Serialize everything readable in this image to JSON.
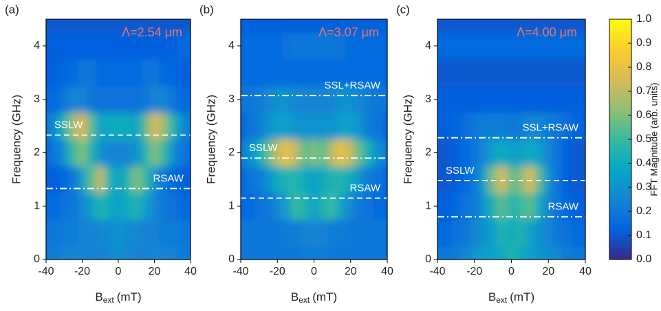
{
  "chart_data": [
    {
      "type": "heatmap",
      "panel": "(a)",
      "title": "Λ=2.54 μm",
      "title_color": "#f0756a",
      "xlabel": [
        "B",
        "ext",
        "(mT)"
      ],
      "ylabel": "Frequency (GHz)",
      "xlim": [
        -40,
        40
      ],
      "ylim": [
        0,
        4.5
      ],
      "xticks": [
        -40,
        -20,
        0,
        20,
        40
      ],
      "yticks": [
        0,
        1,
        2,
        3,
        4
      ],
      "x": [
        -40,
        -35,
        -30,
        -25,
        -20,
        -15,
        -10,
        -5,
        0,
        5,
        10,
        15,
        20,
        25,
        30,
        35,
        40
      ],
      "y": [
        0,
        0.5,
        1,
        1.5,
        2,
        2.5,
        3,
        3.5,
        4,
        4.5
      ],
      "z": [
        [
          0.22,
          0.22,
          0.24,
          0.25,
          0.25,
          0.24,
          0.24,
          0.25,
          0.3,
          0.25,
          0.24,
          0.24,
          0.25,
          0.25,
          0.24,
          0.22,
          0.22
        ],
        [
          0.2,
          0.2,
          0.22,
          0.22,
          0.24,
          0.24,
          0.26,
          0.28,
          0.3,
          0.28,
          0.26,
          0.24,
          0.24,
          0.22,
          0.22,
          0.2,
          0.2
        ],
        [
          0.15,
          0.15,
          0.18,
          0.2,
          0.25,
          0.35,
          0.45,
          0.4,
          0.35,
          0.4,
          0.45,
          0.35,
          0.25,
          0.2,
          0.18,
          0.15,
          0.15
        ],
        [
          0.12,
          0.12,
          0.15,
          0.2,
          0.35,
          0.55,
          0.7,
          0.45,
          0.35,
          0.45,
          0.6,
          0.5,
          0.3,
          0.2,
          0.15,
          0.12,
          0.12
        ],
        [
          0.15,
          0.2,
          0.3,
          0.5,
          0.6,
          0.45,
          0.3,
          0.25,
          0.25,
          0.25,
          0.3,
          0.45,
          0.6,
          0.5,
          0.3,
          0.2,
          0.15
        ],
        [
          0.2,
          0.3,
          0.45,
          0.65,
          0.75,
          0.55,
          0.35,
          0.4,
          0.4,
          0.4,
          0.35,
          0.55,
          0.75,
          0.65,
          0.45,
          0.3,
          0.2
        ],
        [
          0.15,
          0.15,
          0.2,
          0.25,
          0.25,
          0.2,
          0.18,
          0.18,
          0.18,
          0.18,
          0.18,
          0.2,
          0.25,
          0.25,
          0.2,
          0.15,
          0.15
        ],
        [
          0.12,
          0.12,
          0.14,
          0.15,
          0.2,
          0.2,
          0.15,
          0.15,
          0.15,
          0.15,
          0.15,
          0.18,
          0.2,
          0.15,
          0.14,
          0.12,
          0.12
        ],
        [
          0.12,
          0.12,
          0.12,
          0.12,
          0.12,
          0.12,
          0.12,
          0.12,
          0.12,
          0.12,
          0.12,
          0.12,
          0.12,
          0.12,
          0.12,
          0.15,
          0.15
        ],
        [
          0.1,
          0.1,
          0.1,
          0.1,
          0.1,
          0.1,
          0.1,
          0.1,
          0.1,
          0.1,
          0.1,
          0.1,
          0.1,
          0.1,
          0.1,
          0.1,
          0.1
        ]
      ],
      "lines": [
        {
          "y": 2.33,
          "style": "dash",
          "label": "SSLW",
          "side": "left"
        },
        {
          "y": 1.33,
          "style": "dashdot",
          "label": "RSAW",
          "side": "right"
        }
      ]
    },
    {
      "type": "heatmap",
      "panel": "(b)",
      "title": "Λ=3.07 μm",
      "title_color": "#f0756a",
      "xlabel": [
        "B",
        "ext",
        "(mT)"
      ],
      "ylabel": "Frequency (GHz)",
      "xlim": [
        -40,
        40
      ],
      "ylim": [
        0,
        4.5
      ],
      "xticks": [
        -40,
        -20,
        0,
        20,
        40
      ],
      "yticks": [
        0,
        1,
        2,
        3,
        4
      ],
      "x": [
        -40,
        -35,
        -30,
        -25,
        -20,
        -15,
        -10,
        -5,
        0,
        5,
        10,
        15,
        20,
        25,
        30,
        35,
        40
      ],
      "y": [
        0,
        0.5,
        1,
        1.5,
        2,
        2.5,
        3,
        3.5,
        4,
        4.5
      ],
      "z": [
        [
          0.2,
          0.2,
          0.2,
          0.2,
          0.2,
          0.2,
          0.2,
          0.22,
          0.22,
          0.22,
          0.2,
          0.2,
          0.2,
          0.2,
          0.2,
          0.2,
          0.2
        ],
        [
          0.2,
          0.2,
          0.2,
          0.2,
          0.2,
          0.22,
          0.22,
          0.24,
          0.25,
          0.24,
          0.22,
          0.22,
          0.2,
          0.2,
          0.2,
          0.2,
          0.2
        ],
        [
          0.15,
          0.15,
          0.18,
          0.2,
          0.25,
          0.35,
          0.5,
          0.45,
          0.35,
          0.45,
          0.5,
          0.35,
          0.25,
          0.2,
          0.18,
          0.15,
          0.15
        ],
        [
          0.15,
          0.18,
          0.22,
          0.3,
          0.4,
          0.45,
          0.45,
          0.4,
          0.35,
          0.4,
          0.45,
          0.45,
          0.4,
          0.3,
          0.22,
          0.18,
          0.15
        ],
        [
          0.2,
          0.3,
          0.4,
          0.55,
          0.7,
          0.8,
          0.7,
          0.55,
          0.6,
          0.55,
          0.7,
          0.8,
          0.7,
          0.55,
          0.4,
          0.3,
          0.2
        ],
        [
          0.15,
          0.18,
          0.22,
          0.3,
          0.35,
          0.35,
          0.3,
          0.3,
          0.3,
          0.3,
          0.3,
          0.35,
          0.35,
          0.3,
          0.22,
          0.18,
          0.15
        ],
        [
          0.2,
          0.2,
          0.22,
          0.25,
          0.3,
          0.3,
          0.25,
          0.25,
          0.25,
          0.25,
          0.25,
          0.3,
          0.3,
          0.25,
          0.22,
          0.2,
          0.2
        ],
        [
          0.15,
          0.15,
          0.15,
          0.15,
          0.15,
          0.15,
          0.15,
          0.15,
          0.15,
          0.15,
          0.15,
          0.15,
          0.15,
          0.15,
          0.15,
          0.15,
          0.15
        ],
        [
          0.15,
          0.15,
          0.15,
          0.15,
          0.15,
          0.18,
          0.2,
          0.2,
          0.2,
          0.2,
          0.2,
          0.18,
          0.15,
          0.15,
          0.15,
          0.15,
          0.15
        ],
        [
          0.12,
          0.12,
          0.12,
          0.12,
          0.12,
          0.12,
          0.12,
          0.12,
          0.12,
          0.12,
          0.12,
          0.12,
          0.12,
          0.12,
          0.12,
          0.12,
          0.12
        ]
      ],
      "lines": [
        {
          "y": 3.07,
          "style": "dashdot",
          "label": "SSL+RSAW",
          "side": "right"
        },
        {
          "y": 1.9,
          "style": "dashdot",
          "label": "SSLW",
          "side": "left"
        },
        {
          "y": 1.15,
          "style": "dash",
          "label": "RSAW",
          "side": "right"
        }
      ]
    },
    {
      "type": "heatmap",
      "panel": "(c)",
      "title": "Λ=4.00 μm",
      "title_color": "#f0756a",
      "xlabel": [
        "B",
        "ext",
        "(mT)"
      ],
      "ylabel": "Frequency (GHz)",
      "xlim": [
        -40,
        40
      ],
      "ylim": [
        0,
        4.5
      ],
      "xticks": [
        -40,
        -20,
        0,
        20,
        40
      ],
      "yticks": [
        0,
        1,
        2,
        3,
        4
      ],
      "x": [
        -40,
        -35,
        -30,
        -25,
        -20,
        -15,
        -10,
        -5,
        0,
        5,
        10,
        15,
        20,
        25,
        30,
        35,
        40
      ],
      "y": [
        0,
        0.5,
        1,
        1.5,
        2,
        2.5,
        3,
        3.5,
        4,
        4.5
      ],
      "z": [
        [
          0.2,
          0.2,
          0.22,
          0.25,
          0.3,
          0.35,
          0.35,
          0.4,
          0.45,
          0.4,
          0.35,
          0.3,
          0.3,
          0.25,
          0.22,
          0.2,
          0.2
        ],
        [
          0.15,
          0.15,
          0.18,
          0.2,
          0.25,
          0.3,
          0.35,
          0.45,
          0.4,
          0.45,
          0.35,
          0.3,
          0.25,
          0.2,
          0.18,
          0.15,
          0.15
        ],
        [
          0.12,
          0.12,
          0.15,
          0.18,
          0.22,
          0.3,
          0.45,
          0.55,
          0.45,
          0.5,
          0.55,
          0.4,
          0.25,
          0.18,
          0.15,
          0.12,
          0.12
        ],
        [
          0.1,
          0.1,
          0.12,
          0.15,
          0.2,
          0.35,
          0.6,
          0.75,
          0.55,
          0.6,
          0.75,
          0.55,
          0.3,
          0.18,
          0.12,
          0.1,
          0.1
        ],
        [
          0.1,
          0.1,
          0.12,
          0.15,
          0.2,
          0.25,
          0.35,
          0.4,
          0.35,
          0.35,
          0.4,
          0.35,
          0.25,
          0.18,
          0.12,
          0.1,
          0.1
        ],
        [
          0.12,
          0.12,
          0.14,
          0.16,
          0.2,
          0.22,
          0.22,
          0.22,
          0.2,
          0.22,
          0.25,
          0.25,
          0.22,
          0.2,
          0.16,
          0.14,
          0.12
        ],
        [
          0.12,
          0.12,
          0.12,
          0.12,
          0.12,
          0.12,
          0.12,
          0.12,
          0.12,
          0.12,
          0.12,
          0.12,
          0.12,
          0.12,
          0.12,
          0.12,
          0.12
        ],
        [
          0.1,
          0.1,
          0.1,
          0.1,
          0.1,
          0.1,
          0.1,
          0.1,
          0.1,
          0.1,
          0.1,
          0.1,
          0.1,
          0.1,
          0.1,
          0.1,
          0.1
        ],
        [
          0.15,
          0.15,
          0.15,
          0.15,
          0.15,
          0.15,
          0.15,
          0.15,
          0.15,
          0.15,
          0.15,
          0.15,
          0.15,
          0.15,
          0.15,
          0.15,
          0.15
        ],
        [
          0.1,
          0.1,
          0.1,
          0.1,
          0.1,
          0.1,
          0.1,
          0.1,
          0.1,
          0.1,
          0.1,
          0.1,
          0.1,
          0.1,
          0.1,
          0.1,
          0.1
        ]
      ],
      "lines": [
        {
          "y": 2.28,
          "style": "dashdot",
          "label": "SSL+RSAW",
          "side": "right"
        },
        {
          "y": 1.48,
          "style": "dash",
          "label": "SSLW",
          "side": "left"
        },
        {
          "y": 0.8,
          "style": "dashdot",
          "label": "RSAW",
          "side": "right"
        }
      ]
    }
  ],
  "colorbar": {
    "label": "FFT Magnitude (arb. units)",
    "zlim": [
      0,
      1
    ],
    "ticks": [
      {
        "value": 0,
        "label": "0.0"
      },
      {
        "value": 0.1,
        "label": "0.1"
      },
      {
        "value": 0.2,
        "label": "0.2"
      },
      {
        "value": 0.3,
        "label": "0.3"
      },
      {
        "value": 0.4,
        "label": "0.4"
      },
      {
        "value": 0.5,
        "label": "0.5"
      },
      {
        "value": 0.6,
        "label": "0.6"
      },
      {
        "value": 0.7,
        "label": "0.7"
      },
      {
        "value": 0.8,
        "label": "0.8"
      },
      {
        "value": 0.9,
        "label": "0.9"
      },
      {
        "value": 1,
        "label": "1.0"
      }
    ],
    "colormap": [
      "#352a87",
      "#0363e1",
      "#1485d4",
      "#06a7c6",
      "#38b99e",
      "#92bf73",
      "#d9ba56",
      "#fcce2e",
      "#f9fb0e"
    ]
  }
}
